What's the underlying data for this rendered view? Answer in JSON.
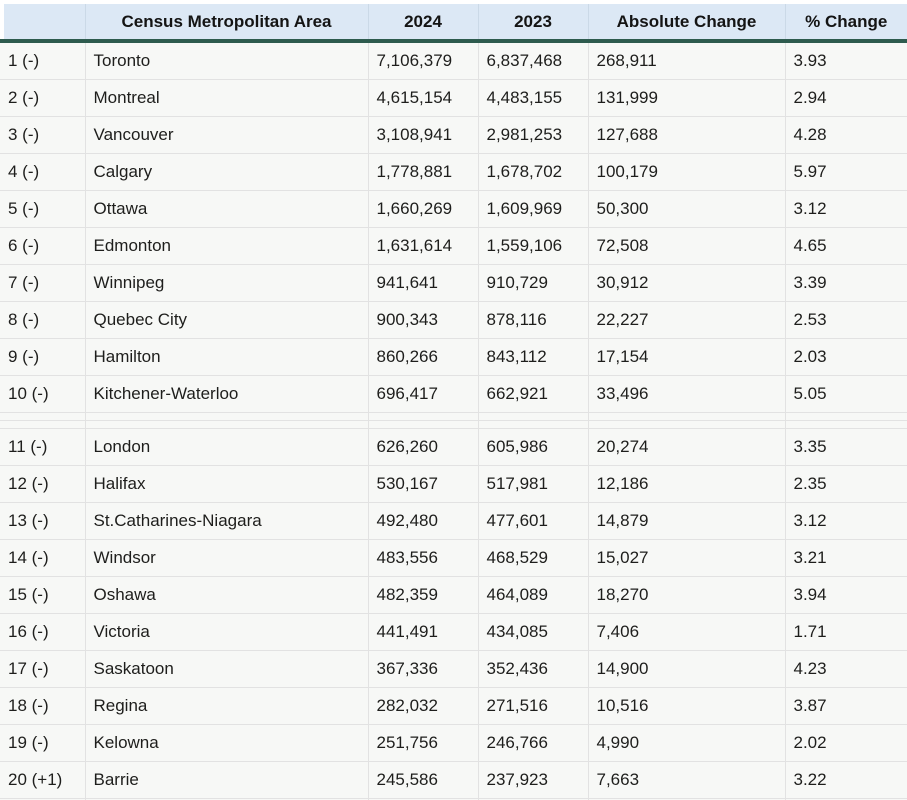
{
  "chart_data": {
    "type": "table",
    "columns": [
      "",
      "Census Metropolitan Area",
      "2024",
      "2023",
      "Absolute Change",
      "% Change"
    ],
    "spacer_after_row": 10,
    "rows": [
      {
        "rank": "1 (-)",
        "name": "Toronto",
        "pop2024": "7,106,379",
        "pop2023": "6,837,468",
        "abs_change": "268,911",
        "pct_change": "3.93"
      },
      {
        "rank": "2 (-)",
        "name": "Montreal",
        "pop2024": "4,615,154",
        "pop2023": "4,483,155",
        "abs_change": "131,999",
        "pct_change": "2.94"
      },
      {
        "rank": "3 (-)",
        "name": "Vancouver",
        "pop2024": "3,108,941",
        "pop2023": "2,981,253",
        "abs_change": "127,688",
        "pct_change": "4.28"
      },
      {
        "rank": "4 (-)",
        "name": "Calgary",
        "pop2024": "1,778,881",
        "pop2023": "1,678,702",
        "abs_change": "100,179",
        "pct_change": "5.97"
      },
      {
        "rank": "5 (-)",
        "name": "Ottawa",
        "pop2024": "1,660,269",
        "pop2023": "1,609,969",
        "abs_change": "50,300",
        "pct_change": "3.12"
      },
      {
        "rank": "6 (-)",
        "name": "Edmonton",
        "pop2024": "1,631,614",
        "pop2023": "1,559,106",
        "abs_change": "72,508",
        "pct_change": "4.65"
      },
      {
        "rank": "7 (-)",
        "name": "Winnipeg",
        "pop2024": "941,641",
        "pop2023": "910,729",
        "abs_change": "30,912",
        "pct_change": "3.39"
      },
      {
        "rank": "8 (-)",
        "name": "Quebec City",
        "pop2024": "900,343",
        "pop2023": "878,116",
        "abs_change": "22,227",
        "pct_change": "2.53"
      },
      {
        "rank": "9 (-)",
        "name": "Hamilton",
        "pop2024": "860,266",
        "pop2023": "843,112",
        "abs_change": "17,154",
        "pct_change": "2.03"
      },
      {
        "rank": "10 (-)",
        "name": "Kitchener-Waterloo",
        "pop2024": "696,417",
        "pop2023": "662,921",
        "abs_change": "33,496",
        "pct_change": "5.05"
      },
      {
        "rank": "11 (-)",
        "name": "London",
        "pop2024": "626,260",
        "pop2023": "605,986",
        "abs_change": "20,274",
        "pct_change": "3.35"
      },
      {
        "rank": "12 (-)",
        "name": "Halifax",
        "pop2024": "530,167",
        "pop2023": "517,981",
        "abs_change": "12,186",
        "pct_change": "2.35"
      },
      {
        "rank": "13 (-)",
        "name": "St.Catharines-Niagara",
        "pop2024": "492,480",
        "pop2023": "477,601",
        "abs_change": "14,879",
        "pct_change": "3.12"
      },
      {
        "rank": "14 (-)",
        "name": "Windsor",
        "pop2024": "483,556",
        "pop2023": "468,529",
        "abs_change": "15,027",
        "pct_change": "3.21"
      },
      {
        "rank": "15 (-)",
        "name": "Oshawa",
        "pop2024": "482,359",
        "pop2023": "464,089",
        "abs_change": "18,270",
        "pct_change": "3.94"
      },
      {
        "rank": "16 (-)",
        "name": "Victoria",
        "pop2024": "441,491",
        "pop2023": "434,085",
        "abs_change": "7,406",
        "pct_change": "1.71"
      },
      {
        "rank": "17 (-)",
        "name": "Saskatoon",
        "pop2024": "367,336",
        "pop2023": "352,436",
        "abs_change": "14,900",
        "pct_change": "4.23"
      },
      {
        "rank": "18 (-)",
        "name": "Regina",
        "pop2024": "282,032",
        "pop2023": "271,516",
        "abs_change": "10,516",
        "pct_change": "3.87"
      },
      {
        "rank": "19 (-)",
        "name": "Kelowna",
        "pop2024": "251,756",
        "pop2023": "246,766",
        "abs_change": "4,990",
        "pct_change": "2.02"
      },
      {
        "rank": "20 (+1)",
        "name": "Barrie",
        "pop2024": "245,586",
        "pop2023": "237,923",
        "abs_change": "7,663",
        "pct_change": "3.22"
      }
    ]
  },
  "colors": {
    "header_bg": "#dce8f5",
    "header_rule": "#2e5b4e",
    "row_bg": "#f7f8f6",
    "grid_line": "#e2e2e2",
    "text": "#1e1e1c"
  }
}
